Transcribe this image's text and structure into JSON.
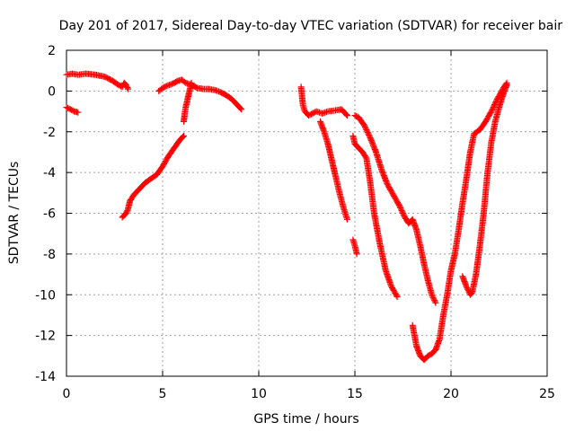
{
  "chart_data": {
    "type": "scatter",
    "title": "Day 201 of 2017, Sidereal Day-to-day VTEC variation (SDTVAR) for receiver bair",
    "xlabel": "GPS time / hours",
    "ylabel": "SDTVAR / TECUs",
    "xlim": [
      0,
      25
    ],
    "ylim": [
      -14,
      2
    ],
    "xticks": [
      0,
      5,
      10,
      15,
      20,
      25
    ],
    "yticks": [
      -14,
      -12,
      -10,
      -8,
      -6,
      -4,
      -2,
      0,
      2
    ],
    "grid": true,
    "marker": "+",
    "color": "#ff0000",
    "series": [
      {
        "x": [
          0.0,
          0.3,
          0.6,
          1.0,
          1.5,
          2.0,
          2.4,
          2.7,
          2.9,
          3.0,
          3.1,
          3.2
        ],
        "values": [
          0.8,
          0.85,
          0.8,
          0.85,
          0.8,
          0.7,
          0.5,
          0.3,
          0.2,
          0.4,
          0.3,
          0.1
        ]
      },
      {
        "x": [
          0.0,
          0.2,
          0.4,
          0.6
        ],
        "values": [
          -0.8,
          -0.9,
          -1.0,
          -1.05
        ]
      },
      {
        "x": [
          2.9,
          3.0,
          3.1,
          3.2,
          3.3,
          3.5,
          3.8,
          4.1,
          4.4,
          4.7,
          5.0,
          5.3,
          5.6,
          5.9,
          6.1
        ],
        "values": [
          -6.2,
          -6.1,
          -6.0,
          -5.8,
          -5.4,
          -5.1,
          -4.8,
          -4.5,
          -4.3,
          -4.1,
          -3.7,
          -3.2,
          -2.8,
          -2.4,
          -2.2
        ]
      },
      {
        "x": [
          4.8,
          5.0,
          5.2,
          5.5,
          5.8,
          6.0,
          6.2,
          6.5,
          6.8,
          7.1,
          7.4,
          7.7,
          8.0,
          8.3,
          8.6,
          8.9,
          9.1
        ],
        "values": [
          0.0,
          0.15,
          0.25,
          0.35,
          0.5,
          0.55,
          0.4,
          0.3,
          0.15,
          0.1,
          0.1,
          0.05,
          -0.05,
          -0.2,
          -0.4,
          -0.7,
          -0.9
        ]
      },
      {
        "x": [
          6.1,
          6.15,
          6.2,
          6.3,
          6.4,
          6.5
        ],
        "values": [
          -1.5,
          -1.1,
          -0.8,
          -0.4,
          0.0,
          0.4
        ]
      },
      {
        "x": [
          12.2,
          12.3,
          12.4,
          12.6,
          12.8,
          13.0,
          13.3,
          13.6,
          14.0,
          14.3,
          14.6
        ],
        "values": [
          0.2,
          -0.7,
          -1.0,
          -1.2,
          -1.1,
          -1.0,
          -1.1,
          -1.0,
          -0.95,
          -0.9,
          -1.2
        ]
      },
      {
        "x": [
          13.2,
          13.4,
          13.6,
          13.8,
          14.0,
          14.2,
          14.4,
          14.6
        ],
        "values": [
          -1.5,
          -2.0,
          -2.6,
          -3.4,
          -4.2,
          -5.0,
          -5.7,
          -6.3
        ]
      },
      {
        "x": [
          14.9,
          15.0,
          15.05,
          15.1
        ],
        "values": [
          -7.3,
          -7.6,
          -7.8,
          -8.0
        ]
      },
      {
        "x": [
          14.9,
          15.0,
          15.2,
          15.4,
          15.6,
          15.8,
          16.0,
          16.3,
          16.6,
          16.9,
          17.2
        ],
        "values": [
          -2.2,
          -2.6,
          -2.8,
          -3.0,
          -3.3,
          -4.5,
          -6.0,
          -7.5,
          -8.8,
          -9.6,
          -10.1
        ]
      },
      {
        "x": [
          15.0,
          15.2,
          15.5,
          15.8,
          16.1,
          16.4,
          16.7,
          17.0,
          17.3,
          17.6,
          17.8,
          18.0,
          18.2,
          18.4,
          18.6,
          18.8,
          19.0,
          19.2
        ],
        "values": [
          -1.2,
          -1.3,
          -1.7,
          -2.3,
          -3.0,
          -3.9,
          -4.6,
          -5.1,
          -5.6,
          -6.2,
          -6.5,
          -6.3,
          -6.8,
          -7.6,
          -8.5,
          -9.3,
          -10.0,
          -10.4
        ]
      },
      {
        "x": [
          18.0,
          18.2,
          18.4,
          18.6,
          18.8,
          19.0,
          19.2,
          19.4,
          19.6,
          19.8,
          20.0,
          20.2,
          20.4,
          20.6,
          20.8,
          21.0,
          21.2,
          21.5,
          21.8,
          22.1,
          22.4,
          22.7,
          22.9
        ],
        "values": [
          -11.5,
          -12.5,
          -13.0,
          -13.2,
          -13.0,
          -12.9,
          -12.7,
          -12.2,
          -11.0,
          -10.0,
          -8.8,
          -8.0,
          -6.8,
          -5.5,
          -4.3,
          -3.0,
          -2.1,
          -1.9,
          -1.5,
          -1.0,
          -0.4,
          0.1,
          0.4
        ]
      },
      {
        "x": [
          20.6,
          20.8,
          21.0,
          21.1,
          21.3,
          21.5,
          21.7,
          21.9,
          22.1,
          22.3,
          22.5,
          22.7,
          22.9
        ],
        "values": [
          -9.1,
          -9.6,
          -10.0,
          -9.9,
          -9.0,
          -7.6,
          -6.0,
          -4.0,
          -2.5,
          -1.5,
          -0.8,
          -0.2,
          0.3
        ]
      }
    ]
  }
}
